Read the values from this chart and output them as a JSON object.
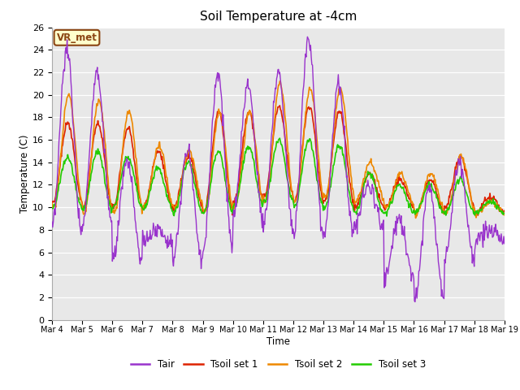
{
  "title": "Soil Temperature at -4cm",
  "xlabel": "Time",
  "ylabel": "Temperature (C)",
  "ylim": [
    0,
    26
  ],
  "yticks": [
    0,
    2,
    4,
    6,
    8,
    10,
    12,
    14,
    16,
    18,
    20,
    22,
    24,
    26
  ],
  "x_labels": [
    "Mar 4",
    "Mar 5",
    "Mar 6",
    "Mar 7",
    "Mar 8",
    "Mar 9",
    "Mar 10",
    "Mar 11",
    "Mar 12",
    "Mar 13",
    "Mar 14",
    "Mar 15",
    "Mar 16",
    "Mar 17",
    "Mar 18",
    "Mar 19"
  ],
  "background_color": "#ffffff",
  "plot_bg_color": "#e8e8e8",
  "annotation_text": "VR_met",
  "annotation_bg": "#ffffcc",
  "annotation_border": "#8b4513",
  "colors": {
    "Tair": "#9933cc",
    "Tsoil1": "#dd2200",
    "Tsoil2": "#ee8800",
    "Tsoil3": "#22cc00"
  },
  "legend_labels": [
    "Tair",
    "Tsoil set 1",
    "Tsoil set 2",
    "Tsoil set 3"
  ]
}
